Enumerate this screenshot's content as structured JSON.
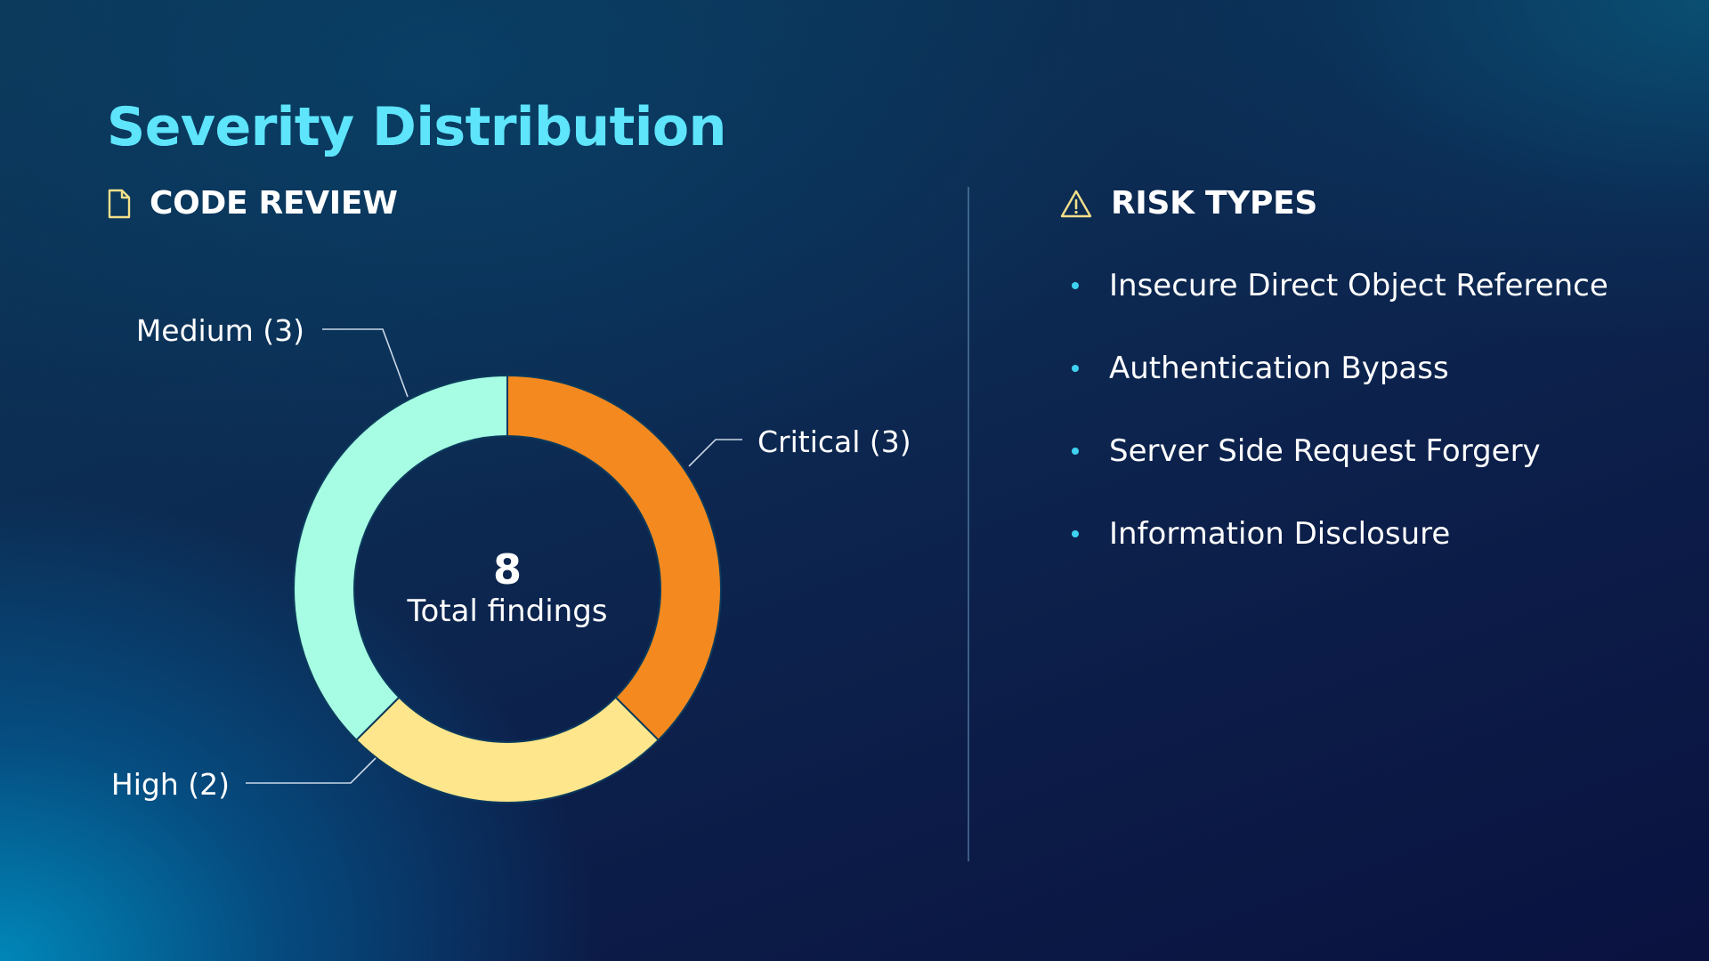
{
  "slide": {
    "title": "Severity Distribution"
  },
  "code_review": {
    "heading": "CODE REVIEW",
    "icon": "document-icon",
    "icon_color": "#f2e08a"
  },
  "risk_types": {
    "heading": "RISK TYPES",
    "icon": "warning-icon",
    "icon_color": "#f2e08a",
    "bullet_color": "#3fd2f0",
    "items": [
      "Insecure Direct Object Reference",
      "Authentication Bypass",
      "Server Side Request Forgery",
      "Information Disclosure"
    ]
  },
  "chart_data": {
    "type": "pie",
    "donut": true,
    "title": "",
    "categories": [
      "Critical",
      "High",
      "Medium"
    ],
    "values": [
      3,
      2,
      3
    ],
    "colors": [
      "#f48a1f",
      "#fde68c",
      "#a6fde3"
    ],
    "labels": [
      "Critical (3)",
      "High (2)",
      "Medium (3)"
    ],
    "center_value": "8",
    "center_label": "Total findings",
    "start": "12 o'clock",
    "direction": "clockwise"
  }
}
